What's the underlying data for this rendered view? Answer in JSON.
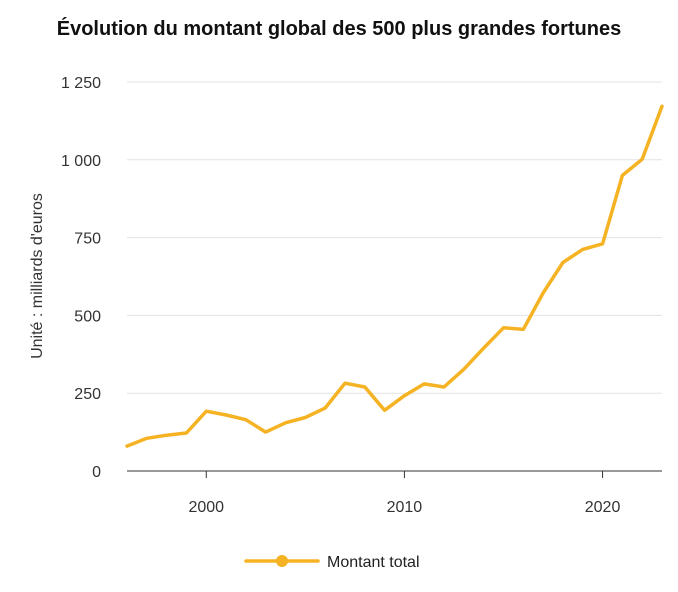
{
  "chart_data": {
    "type": "line",
    "title": "Évolution du montant global des 500 plus grandes fortunes",
    "xlabel": "",
    "ylabel": "Unité : milliards d'euros",
    "xlim": [
      1996,
      2023
    ],
    "ylim": [
      0,
      1250
    ],
    "x_ticks": [
      2000,
      2010,
      2020
    ],
    "y_ticks": [
      0,
      250,
      500,
      750,
      1000,
      1250
    ],
    "x_tick_labels": [
      "2000",
      "2010",
      "2020"
    ],
    "y_tick_labels": [
      "0",
      "250",
      "500",
      "750",
      "1 000",
      "1 250"
    ],
    "grid": "horizontal",
    "legend_position": "bottom-center",
    "series": [
      {
        "name": "Montant total",
        "color": "#f5b324",
        "x": [
          1996,
          1997,
          1998,
          1999,
          2000,
          2001,
          2002,
          2003,
          2004,
          2005,
          2006,
          2007,
          2008,
          2009,
          2010,
          2011,
          2012,
          2013,
          2014,
          2015,
          2016,
          2017,
          2018,
          2019,
          2020,
          2021,
          2022,
          2023
        ],
        "values": [
          80,
          105,
          115,
          122,
          192,
          180,
          165,
          125,
          155,
          172,
          202,
          282,
          270,
          195,
          242,
          280,
          270,
          327,
          395,
          460,
          455,
          572,
          670,
          712,
          730,
          950,
          1002,
          1172
        ]
      }
    ]
  }
}
